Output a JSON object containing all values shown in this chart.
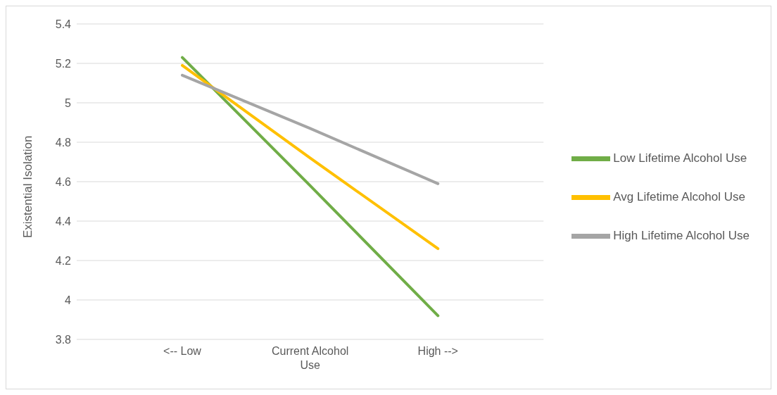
{
  "chart_data": {
    "type": "line",
    "ylabel": "Existential Isolation",
    "categories": [
      "<-- Low",
      "Current Alcohol Use",
      "High -->"
    ],
    "series": [
      {
        "name": "Low Lifetime Alcohol Use",
        "color": "#70ad47",
        "values": [
          5.23,
          4.58,
          3.92
        ]
      },
      {
        "name": "Avg Lifetime Alcohol Use",
        "color": "#ffc000",
        "values": [
          5.19,
          4.72,
          4.26
        ]
      },
      {
        "name": "High Lifetime Alcohol Use",
        "color": "#a5a5a5",
        "values": [
          5.14,
          4.87,
          4.59
        ]
      }
    ],
    "ylim": [
      3.8,
      5.4
    ],
    "yticks": [
      3.8,
      4,
      4.2,
      4.4,
      4.6,
      4.8,
      5,
      5.2,
      5.4
    ],
    "grid": "y",
    "legend": "right",
    "marker": "none",
    "line_style": "solid"
  }
}
